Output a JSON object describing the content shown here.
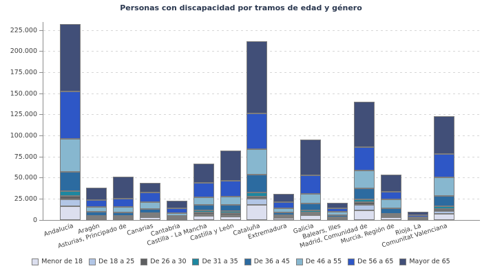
{
  "title": "Personas con discapacidad por tramos de edad y género",
  "chart_data": {
    "type": "bar",
    "stacked": true,
    "title": "Personas con discapacidad por tramos de edad y género",
    "xlabel": "",
    "ylabel": "",
    "grid": "horizontal-dashed",
    "legend_position": "bottom",
    "ylim": [
      0,
      235000
    ],
    "y_ticks": [
      {
        "value": 0,
        "label": "0"
      },
      {
        "value": 25000,
        "label": "25.000"
      },
      {
        "value": 50000,
        "label": "50.000"
      },
      {
        "value": 75000,
        "label": "75.000"
      },
      {
        "value": 100000,
        "label": "100.000"
      },
      {
        "value": 125000,
        "label": "125.000"
      },
      {
        "value": 150000,
        "label": "150.000"
      },
      {
        "value": 175000,
        "label": "175.000"
      },
      {
        "value": 200000,
        "label": "200.000"
      },
      {
        "value": 225000,
        "label": "225.000"
      }
    ],
    "categories": [
      "Andalucía",
      "Aragón",
      "Asturias, Principado de",
      "Canarias",
      "Cantabria",
      "Castilla - La Mancha",
      "Castilla y León",
      "Cataluña",
      "Extremadura",
      "Galicia",
      "Balears, Illes",
      "Madrid, Comunidad de",
      "Murcia, Región de",
      "Rioja, La",
      "Comunitat Valenciana"
    ],
    "series": [
      {
        "name": "Menor de 18",
        "color": "#dcdfef",
        "values": [
          16100,
          1700,
          1650,
          3300,
          1200,
          4700,
          3800,
          18250,
          2650,
          5450,
          1400,
          11400,
          3250,
          800,
          7350
        ]
      },
      {
        "name": "De 18 a 25",
        "color": "#b2c6e6",
        "values": [
          8150,
          1000,
          1100,
          1650,
          800,
          2200,
          2200,
          7100,
          1300,
          1900,
          1000,
          6250,
          1900,
          500,
          3500
        ]
      },
      {
        "name": "De 26 a 30",
        "color": "#5e5f61",
        "values": [
          4100,
          900,
          900,
          1350,
          500,
          1900,
          1900,
          2700,
          700,
          1400,
          400,
          3250,
          800,
          200,
          1900
        ]
      },
      {
        "name": "De 31 a 35",
        "color": "#1d87a0",
        "values": [
          5700,
          1000,
          1000,
          2000,
          600,
          2700,
          2700,
          4650,
          800,
          2700,
          500,
          3250,
          1350,
          250,
          3250
        ]
      },
      {
        "name": "De 36 a 45",
        "color": "#2c6ba0",
        "values": [
          23150,
          4900,
          4100,
          4900,
          1900,
          6300,
          7100,
          20850,
          3250,
          8150,
          2700,
          13050,
          6250,
          800,
          12500
        ]
      },
      {
        "name": "De 46 a 55",
        "color": "#87b7cf",
        "values": [
          39250,
          6000,
          6800,
          8150,
          3250,
          9250,
          10050,
          30100,
          4900,
          11400,
          3500,
          21200,
          10600,
          1000,
          21700
        ]
      },
      {
        "name": "De 56 a 65",
        "color": "#2e57c6",
        "values": [
          56200,
          8150,
          10050,
          10900,
          5400,
          17200,
          19050,
          42700,
          7300,
          21700,
          4650,
          28200,
          9000,
          2500,
          28200
        ]
      },
      {
        "name": "Mayor de 65",
        "color": "#414f78",
        "values": [
          79600,
          14450,
          25400,
          11450,
          9000,
          22300,
          35500,
          86000,
          10300,
          42350,
          6250,
          53250,
          20850,
          3500,
          44300
        ]
      }
    ]
  },
  "colors": {
    "grid": "#d6d6d6",
    "axis": "#8c8c8c",
    "segment_border": "#7d7d7d",
    "title_text": "#2b3850",
    "tick_text": "#3f3f3f"
  }
}
